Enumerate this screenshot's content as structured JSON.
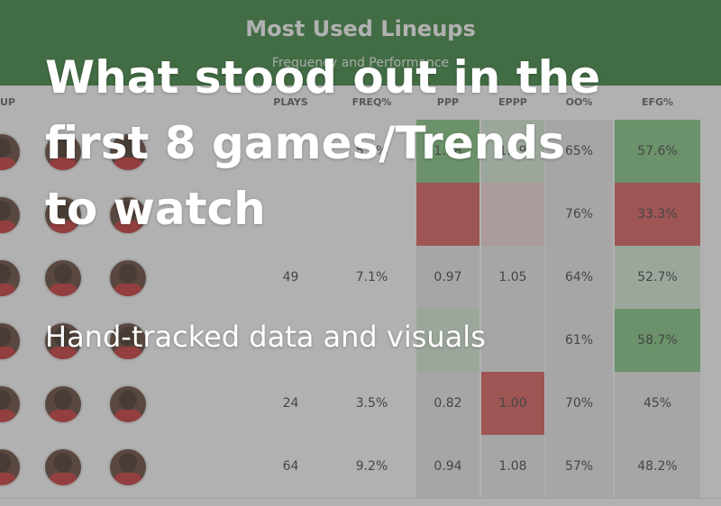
{
  "table": {
    "title": "Most Used Lineups",
    "subtitle": "Frequency and Performance",
    "columns": {
      "lineup": "UP",
      "plays": "PLAYS",
      "freq": "FREQ%",
      "ppp": "PPP",
      "eppp": "EPPP",
      "oo": "OO%",
      "efg": "EFG%"
    },
    "rows": [
      {
        "plays": "",
        "freq": "5.6%",
        "ppp": "1.18",
        "eppp": "1.19",
        "oo": "65%",
        "efg": "57.6%"
      },
      {
        "plays": "",
        "freq": "",
        "ppp": "",
        "eppp": "",
        "oo": "76%",
        "efg": "33.3%"
      },
      {
        "plays": "49",
        "freq": "7.1%",
        "ppp": "0.97",
        "eppp": "1.05",
        "oo": "64%",
        "efg": "52.7%"
      },
      {
        "plays": "",
        "freq": "",
        "ppp": "",
        "eppp": "",
        "oo": "61%",
        "efg": "58.7%"
      },
      {
        "plays": "24",
        "freq": "3.5%",
        "ppp": "0.82",
        "eppp": "1.00",
        "oo": "70%",
        "efg": "45%"
      },
      {
        "plays": "64",
        "freq": "9.2%",
        "ppp": "0.94",
        "eppp": "1.08",
        "oo": "57%",
        "efg": "48.2%"
      }
    ]
  },
  "overlay": {
    "headline": "What stood out in the first 8 games/Trends to watch",
    "subheadline": "Hand-tracked data and visuals"
  },
  "colors": {
    "header_green": "#2e7d32",
    "good_strong": "#7cc47a",
    "good_weak": "#d8edd6",
    "bad_strong": "#d9534f",
    "bad_weak": "#f3d6d4"
  }
}
